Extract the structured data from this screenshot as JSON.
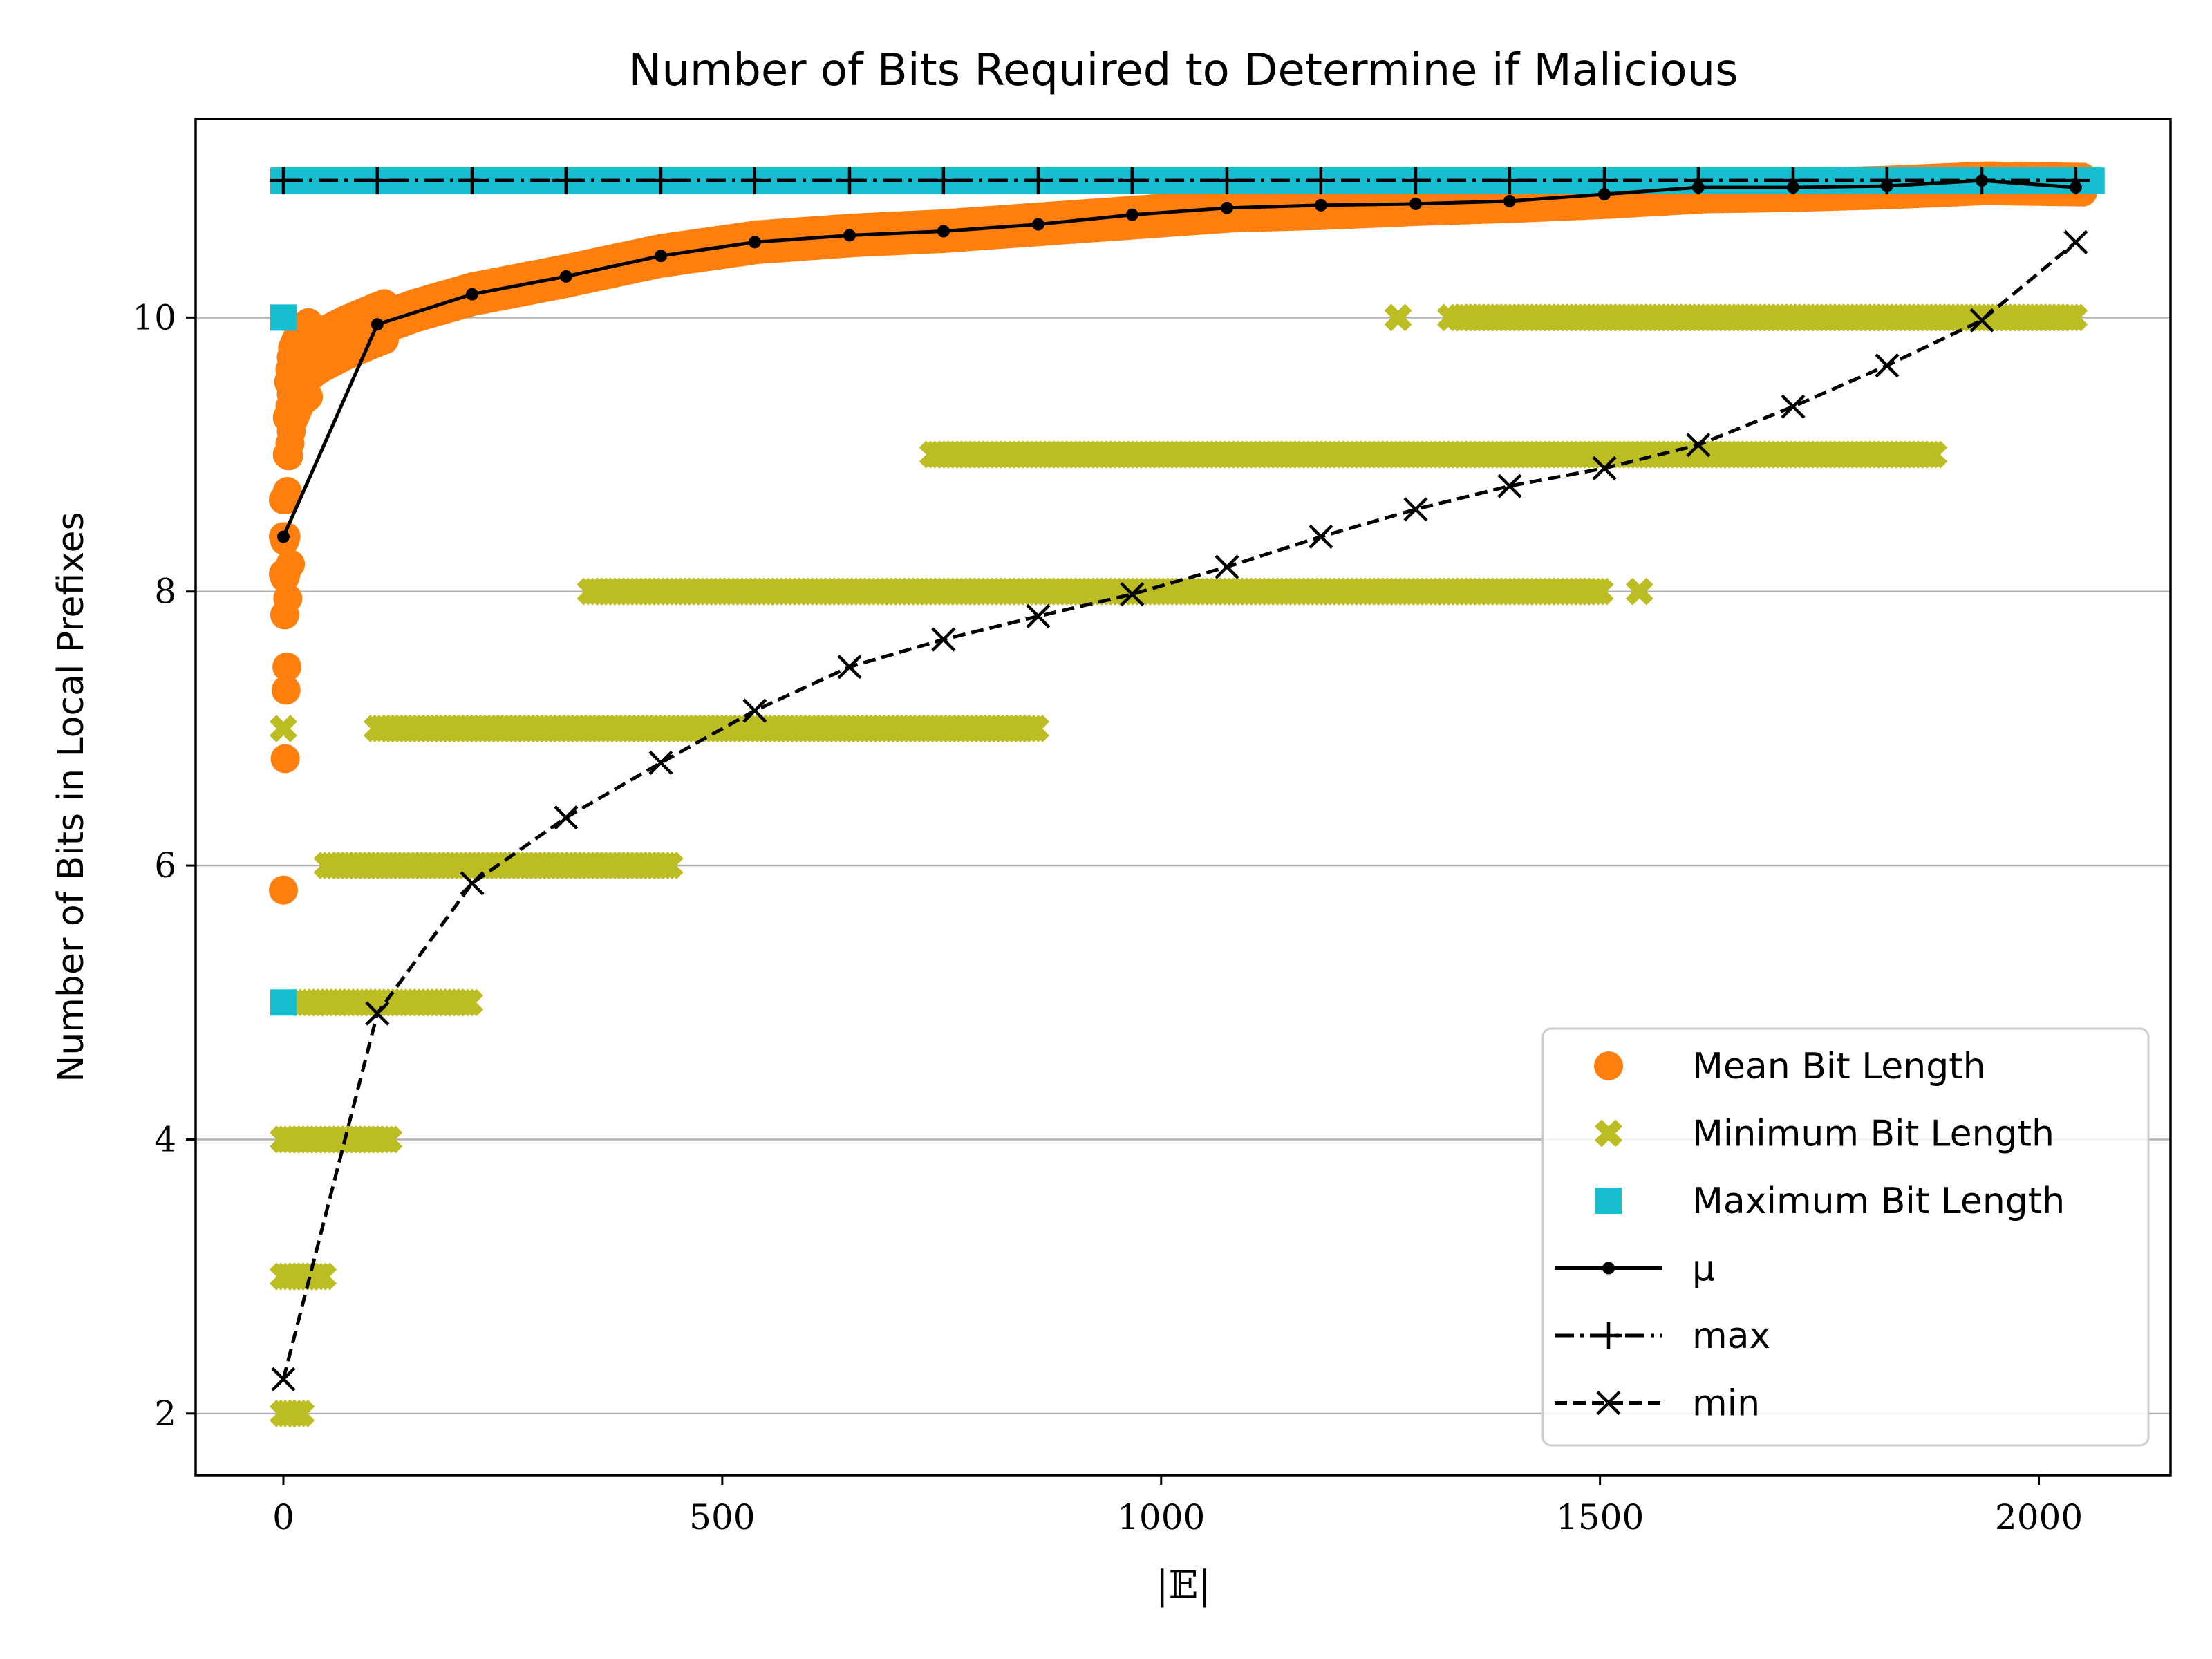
{
  "chart_data": {
    "type": "scatter",
    "title": "Number of Bits Required to Determine if Malicious",
    "xlabel": "|𝔼|",
    "ylabel": "Number of Bits in Local Prefixes",
    "xlim": [
      -100,
      2150
    ],
    "ylim": [
      1.55,
      11.45
    ],
    "xticks": [
      0,
      500,
      1000,
      1500,
      2000
    ],
    "yticks": [
      2,
      4,
      6,
      8,
      10
    ],
    "grid": "horizontal",
    "legend_position": "lower-right",
    "colors": {
      "mean": "#ff7f0e",
      "minimum": "#bcbd22",
      "maximum": "#17becf",
      "line": "#000000",
      "grid": "#b0b0b0"
    },
    "scatter_series": [
      {
        "name": "Mean Bit Length",
        "marker": "circle",
        "color": "#ff7f0e",
        "curve": [
          [
            0,
            8.4
          ],
          [
            2,
            8.0
          ],
          [
            5,
            9.2
          ],
          [
            10,
            9.5
          ],
          [
            20,
            9.65
          ],
          [
            40,
            9.75
          ],
          [
            70,
            9.85
          ],
          [
            107,
            9.95
          ],
          [
            150,
            10.05
          ],
          [
            215,
            10.17
          ],
          [
            320,
            10.3
          ],
          [
            430,
            10.45
          ],
          [
            540,
            10.55
          ],
          [
            650,
            10.6
          ],
          [
            750,
            10.63
          ],
          [
            860,
            10.68
          ],
          [
            970,
            10.73
          ],
          [
            1080,
            10.78
          ],
          [
            1190,
            10.8
          ],
          [
            1300,
            10.83
          ],
          [
            1400,
            10.85
          ],
          [
            1510,
            10.88
          ],
          [
            1620,
            10.92
          ],
          [
            1720,
            10.93
          ],
          [
            1830,
            10.95
          ],
          [
            1940,
            10.98
          ],
          [
            2050,
            10.97
          ]
        ],
        "isolated": [
          [
            0,
            5.82
          ],
          [
            2,
            6.78
          ],
          [
            3,
            7.28
          ],
          [
            4,
            7.45
          ],
          [
            5,
            7.95
          ],
          [
            8,
            8.2
          ]
        ]
      },
      {
        "name": "Minimum Bit Length",
        "marker": "x-filled",
        "color": "#bcbd22",
        "ranges": [
          {
            "y": 2,
            "x_from": 0,
            "x_to": 22
          },
          {
            "y": 3,
            "x_from": 0,
            "x_to": 45
          },
          {
            "y": 4,
            "x_from": 0,
            "x_to": 120
          },
          {
            "y": 5,
            "x_from": 22,
            "x_to": 215
          },
          {
            "y": 6,
            "x_from": 50,
            "x_to": 440
          },
          {
            "y": 7,
            "x_from": 107,
            "x_to": 860
          },
          {
            "y": 8,
            "x_from": 350,
            "x_to": 1500
          },
          {
            "y": 9,
            "x_from": 740,
            "x_to": 1880
          },
          {
            "y": 10,
            "x_from": 1340,
            "x_to": 2040
          }
        ],
        "isolated": [
          [
            0,
            7
          ],
          [
            1270,
            10
          ],
          [
            1330,
            10
          ],
          [
            1545,
            8
          ],
          [
            1860,
            9
          ]
        ]
      },
      {
        "name": "Maximum Bit Length",
        "marker": "square",
        "color": "#17becf",
        "ranges": [
          {
            "y": 11,
            "x_from": 0,
            "x_to": 2060
          }
        ],
        "isolated": [
          [
            0,
            10
          ],
          [
            0,
            5
          ]
        ]
      }
    ],
    "line_series": [
      {
        "name": "μ",
        "style": "solid",
        "marker": "dot",
        "x": [
          0,
          107,
          215,
          322,
          430,
          537,
          645,
          752,
          860,
          967,
          1075,
          1182,
          1290,
          1397,
          1505,
          1612,
          1720,
          1827,
          1935,
          2042
        ],
        "y": [
          8.4,
          9.95,
          10.17,
          10.3,
          10.45,
          10.55,
          10.6,
          10.63,
          10.68,
          10.75,
          10.8,
          10.82,
          10.83,
          10.85,
          10.9,
          10.95,
          10.95,
          10.96,
          11.0,
          10.95
        ]
      },
      {
        "name": "max",
        "style": "dashdot",
        "marker": "plus",
        "x": [
          0,
          107,
          215,
          322,
          430,
          537,
          645,
          752,
          860,
          967,
          1075,
          1182,
          1290,
          1397,
          1505,
          1612,
          1720,
          1827,
          1935,
          2042
        ],
        "y": [
          11,
          11,
          11,
          11,
          11,
          11,
          11,
          11,
          11,
          11,
          11,
          11,
          11,
          11,
          11,
          11,
          11,
          11,
          11,
          11
        ]
      },
      {
        "name": "min",
        "style": "dashed",
        "marker": "x",
        "x": [
          0,
          107,
          215,
          322,
          430,
          537,
          645,
          752,
          860,
          967,
          1075,
          1182,
          1290,
          1397,
          1505,
          1612,
          1720,
          1827,
          1935,
          2042
        ],
        "y": [
          2.25,
          4.92,
          5.87,
          6.35,
          6.75,
          7.13,
          7.45,
          7.65,
          7.82,
          7.98,
          8.18,
          8.4,
          8.6,
          8.77,
          8.9,
          9.07,
          9.35,
          9.65,
          9.98,
          10.55
        ]
      }
    ]
  }
}
